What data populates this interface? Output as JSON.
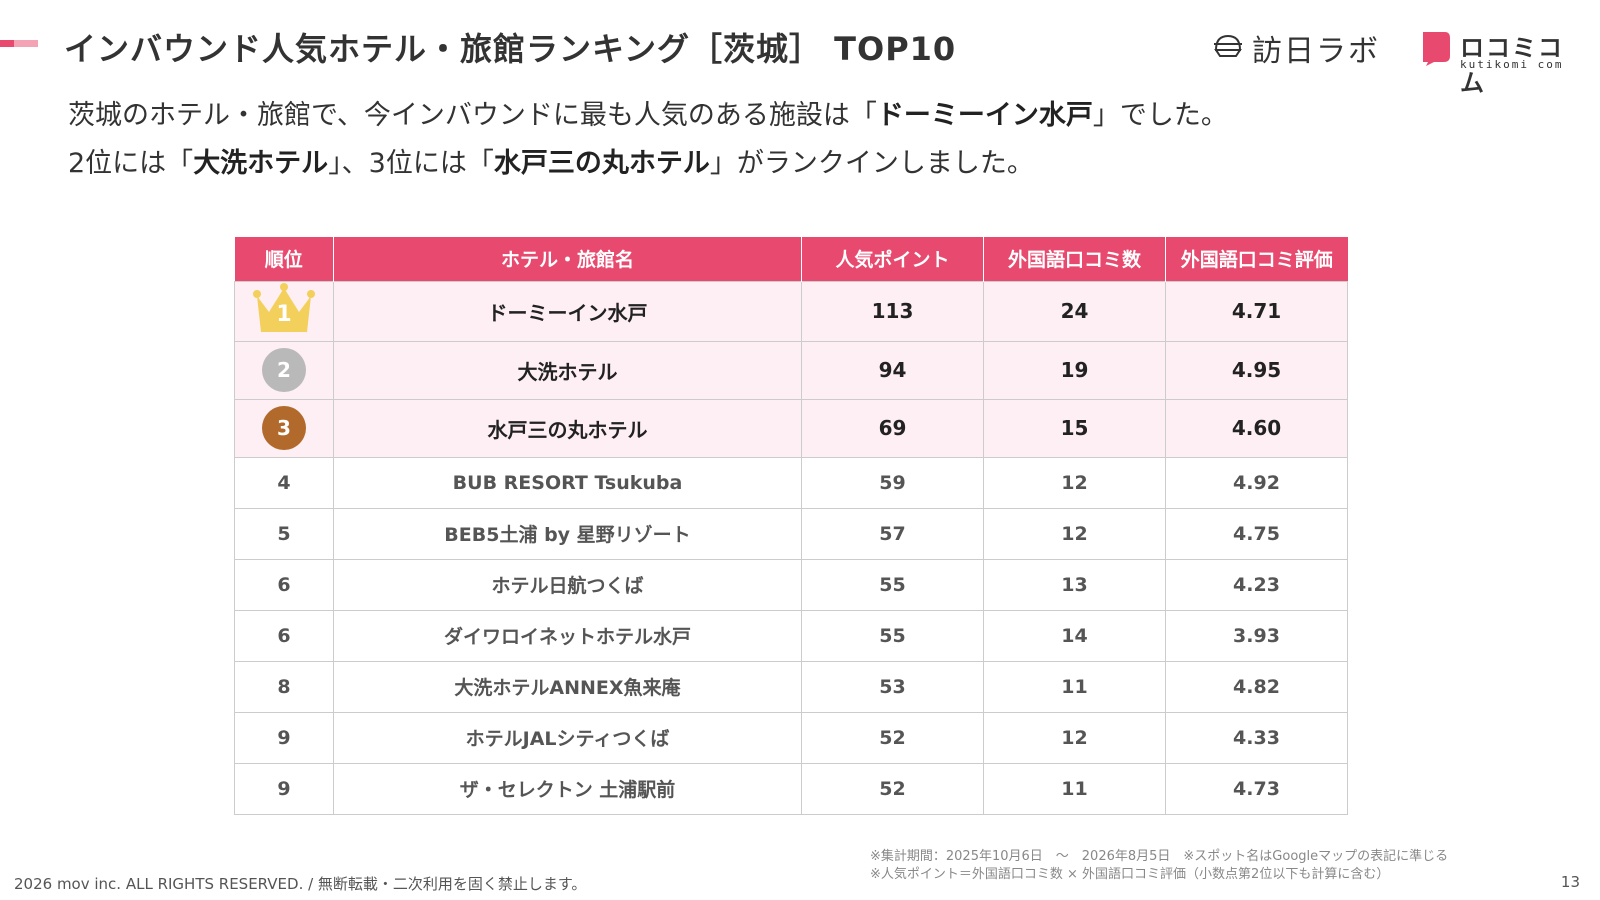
{
  "colors": {
    "accent": "#e84a6f",
    "accent_light": "#f4a3b4",
    "row_highlight": "#fdeff3",
    "gold": "#f3cf5c",
    "silver": "#b9b9b9",
    "bronze": "#b26a2c"
  },
  "header": {
    "title": "インバウンド人気ホテル・旅館ランキング［茨城］ TOP10"
  },
  "logos": {
    "houjin_icon": "dome-icon",
    "houjin_text": "訪日ラボ",
    "kuchikomi_name": "ロコミコム",
    "kuchikomi_sub": "kutikomi com"
  },
  "lead": {
    "line1_pre": "茨城のホテル・旅館で、今インバウンドに最も人気のある施設は「",
    "line1_bold": "ドーミーイン水戸",
    "line1_post": "」でした。",
    "line2_a": "2位には「",
    "line2_bold1": "大洗ホテル",
    "line2_b": "」、3位には「",
    "line2_bold2": "水戸三の丸ホテル",
    "line2_c": "」がランクインしました。"
  },
  "table": {
    "headers": [
      "順位",
      "ホテル・旅館名",
      "人気ポイント",
      "外国語口コミ数",
      "外国語口コミ評価"
    ],
    "rows": [
      {
        "rank": "1",
        "name": "ドーミーイン水戸",
        "points": "113",
        "count": "24",
        "rating": "4.71"
      },
      {
        "rank": "2",
        "name": "大洗ホテル",
        "points": "94",
        "count": "19",
        "rating": "4.95"
      },
      {
        "rank": "3",
        "name": "水戸三の丸ホテル",
        "points": "69",
        "count": "15",
        "rating": "4.60"
      },
      {
        "rank": "4",
        "name": "BUB RESORT Tsukuba",
        "points": "59",
        "count": "12",
        "rating": "4.92"
      },
      {
        "rank": "5",
        "name": "BEB5土浦 by 星野リゾート",
        "points": "57",
        "count": "12",
        "rating": "4.75"
      },
      {
        "rank": "6",
        "name": "ホテル日航つくば",
        "points": "55",
        "count": "13",
        "rating": "4.23"
      },
      {
        "rank": "6",
        "name": "ダイワロイネットホテル水戸",
        "points": "55",
        "count": "14",
        "rating": "3.93"
      },
      {
        "rank": "8",
        "name": "大洗ホテルANNEX魚来庵",
        "points": "53",
        "count": "11",
        "rating": "4.82"
      },
      {
        "rank": "9",
        "name": "ホテルJALシティつくば",
        "points": "52",
        "count": "12",
        "rating": "4.33"
      },
      {
        "rank": "9",
        "name": "ザ・セレクトン 土浦駅前",
        "points": "52",
        "count": "11",
        "rating": "4.73"
      }
    ]
  },
  "notes": {
    "line1": "※集計期間：2025年10月6日　〜　2026年8月5日　※スポット名はGoogleマップの表記に準じる",
    "line2": "※人気ポイント＝外国語口コミ数 × 外国語口コミ評価（小数点第2位以下も計算に含む）"
  },
  "footer": {
    "copyright": "2026 mov inc. ALL RIGHTS RESERVED. / 無断転載・二次利用を固く禁止します。",
    "page": "13"
  }
}
